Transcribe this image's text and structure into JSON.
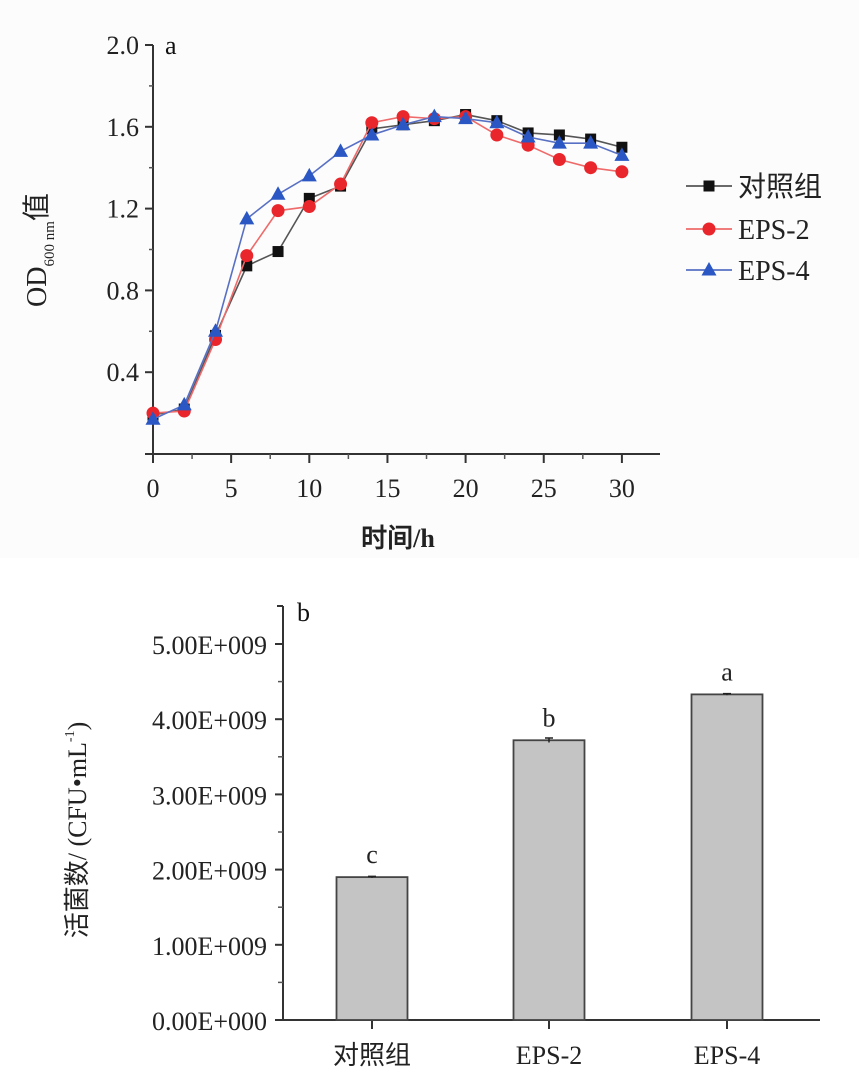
{
  "chart_data": [
    {
      "type": "line",
      "panel_label": "a",
      "xlabel": "时间/h",
      "ylabel_main": "OD",
      "ylabel_sub": "600 nm",
      "ylabel_suffix": "值",
      "xlim": [
        0,
        32
      ],
      "ylim": [
        0,
        2.0
      ],
      "xticks": [
        "0",
        "5",
        "10",
        "15",
        "20",
        "25",
        "30"
      ],
      "xtick_values": [
        0,
        5,
        10,
        15,
        20,
        25,
        30
      ],
      "yticks": [
        "0.4",
        "0.8",
        "1.2",
        "1.6",
        "2.0"
      ],
      "ytick_values": [
        0.4,
        0.8,
        1.2,
        1.6,
        2.0
      ],
      "x": [
        0,
        2,
        4,
        6,
        8,
        10,
        12,
        14,
        16,
        18,
        20,
        22,
        24,
        26,
        28,
        30
      ],
      "legend_position": "right",
      "series": [
        {
          "name": "对照组",
          "color": "#111111",
          "line_color": "#555555",
          "marker": "square",
          "values": [
            0.19,
            0.22,
            0.58,
            0.92,
            0.99,
            1.25,
            1.31,
            1.59,
            1.61,
            1.63,
            1.66,
            1.63,
            1.57,
            1.56,
            1.54,
            1.5
          ]
        },
        {
          "name": "EPS-2",
          "color": "#e8262b",
          "line_color": "#ef6a6a",
          "marker": "circle",
          "values": [
            0.2,
            0.21,
            0.56,
            0.97,
            1.19,
            1.21,
            1.32,
            1.62,
            1.65,
            1.64,
            1.65,
            1.56,
            1.51,
            1.44,
            1.4,
            1.38
          ]
        },
        {
          "name": "EPS-4",
          "color": "#2a57c4",
          "line_color": "#5870c4",
          "marker": "triangle",
          "values": [
            0.17,
            0.24,
            0.6,
            1.15,
            1.27,
            1.36,
            1.48,
            1.56,
            1.61,
            1.65,
            1.64,
            1.62,
            1.55,
            1.52,
            1.52,
            1.46
          ]
        }
      ]
    },
    {
      "type": "bar",
      "panel_label": "b",
      "ylabel": "活菌数/ (CFU•mL",
      "ylabel_sup": "-1",
      "ylabel_close": ")",
      "categories": [
        "对照组",
        "EPS-2",
        "EPS-4"
      ],
      "values": [
        1900000000.0,
        3720000000.0,
        4330000000.0
      ],
      "errors": [
        10000000.0,
        30000000.0,
        10000000.0
      ],
      "significance": [
        "c",
        "b",
        "a"
      ],
      "bar_color": "#c4c4c4",
      "ylim": [
        0,
        5400000000.0
      ],
      "yticks": [
        "0.00E+000",
        "1.00E+009",
        "2.00E+009",
        "3.00E+009",
        "4.00E+009",
        "5.00E+009"
      ],
      "ytick_values": [
        0,
        1000000000.0,
        2000000000.0,
        3000000000.0,
        4000000000.0,
        5000000000.0
      ]
    }
  ]
}
